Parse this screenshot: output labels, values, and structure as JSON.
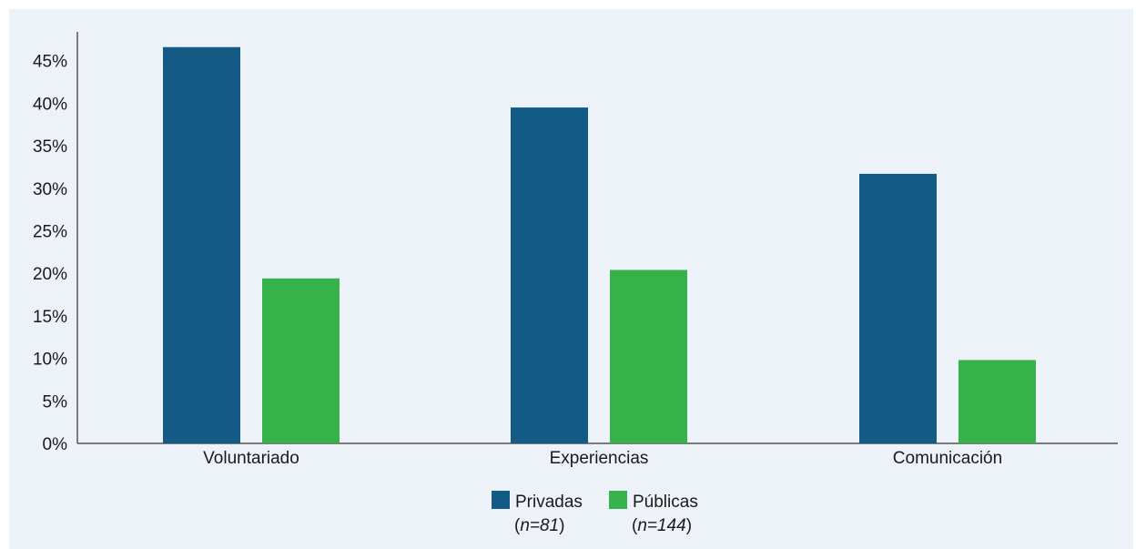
{
  "chart_data": {
    "type": "bar",
    "title": "",
    "xlabel": "",
    "ylabel": "",
    "categories": [
      "Voluntariado",
      "Experiencias",
      "Comunicación"
    ],
    "series": [
      {
        "name": "Privadas",
        "note": "n=81",
        "color": "#135a85",
        "values": [
          46.6,
          39.5,
          31.7
        ]
      },
      {
        "name": "Públicas",
        "note": "n=144",
        "color": "#36b24a",
        "values": [
          19.4,
          20.4,
          9.8
        ]
      }
    ],
    "yticks": [
      "0%",
      "5%",
      "10%",
      "15%",
      "20%",
      "25%",
      "30%",
      "35%",
      "40%",
      "45%"
    ],
    "ylim": [
      0,
      48
    ],
    "grid": false,
    "legend_position": "bottom-center"
  }
}
